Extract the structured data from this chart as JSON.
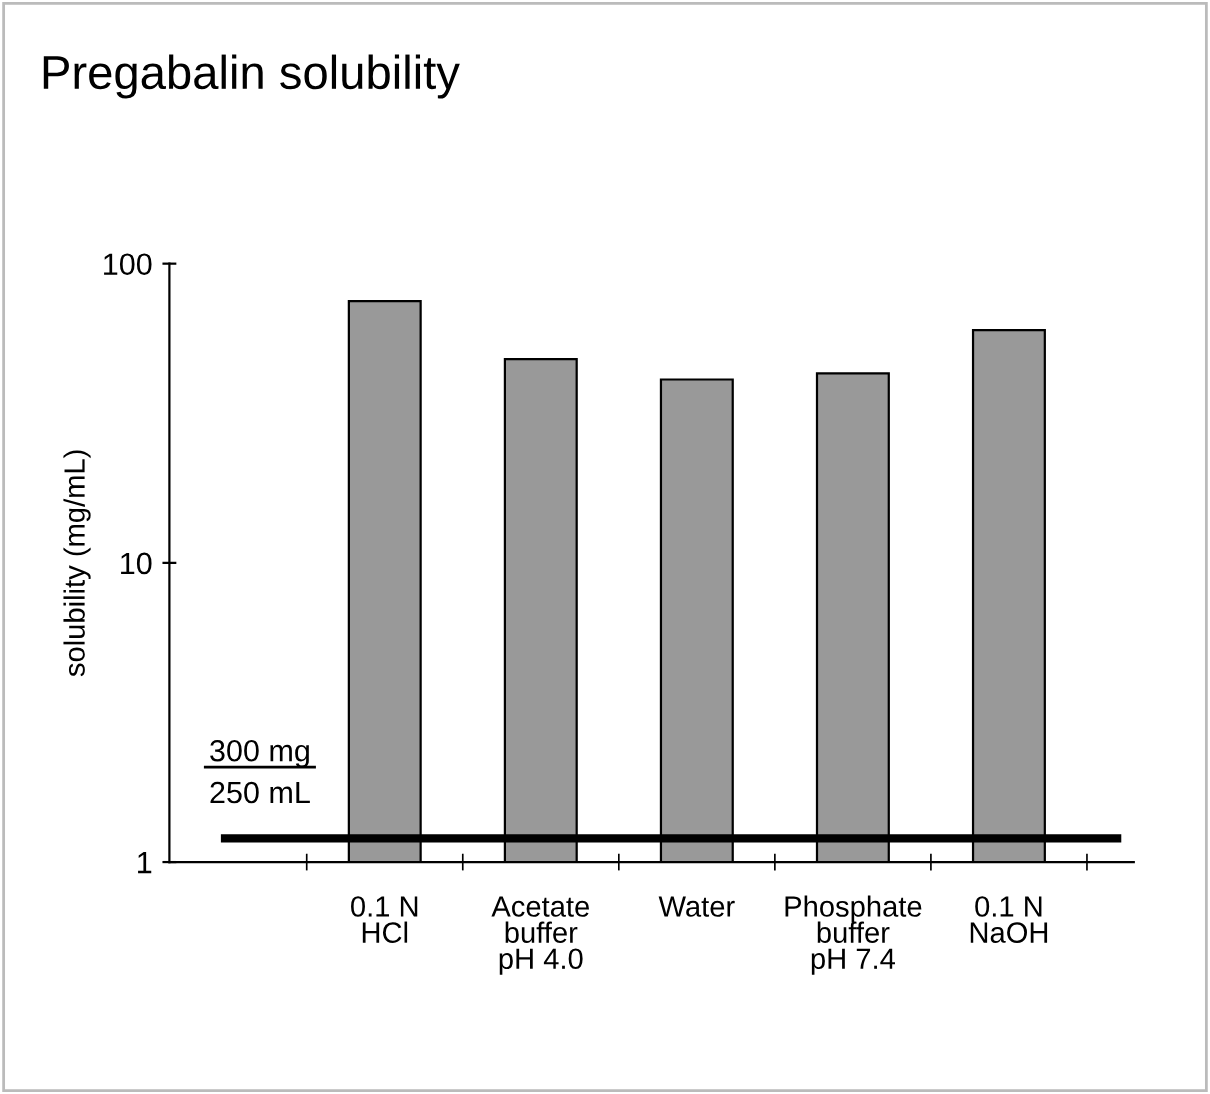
{
  "chart_data": {
    "type": "bar",
    "title": "Pregabalin solubility",
    "ylabel": "solubility (mg/mL)",
    "categories": [
      null,
      "0.1 N\nHCl",
      "Acetate\nbuffer\npH 4.0",
      "Water",
      "Phosphate\nbuffer\npH 7.4",
      "0.1 N\nNaOH"
    ],
    "values": [
      null,
      75,
      48,
      41,
      43,
      60
    ],
    "color": "#999999",
    "log": true,
    "ylim": [
      1,
      100
    ],
    "yticks": [
      1,
      10,
      100
    ],
    "grid": false,
    "legend": false,
    "ref_lines": [
      {
        "axis": "y",
        "value": 1.2,
        "label": "300 mg\n250 mL",
        "color": "#000000",
        "line_style": "solid"
      }
    ]
  }
}
